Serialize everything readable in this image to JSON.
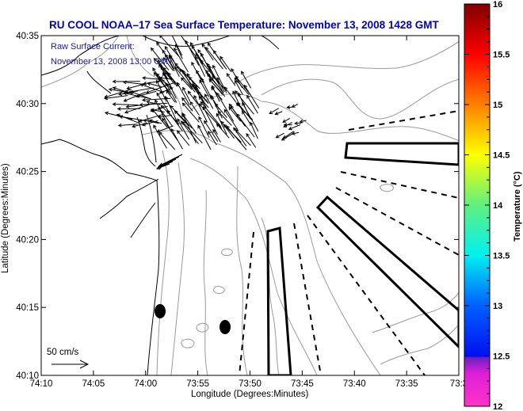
{
  "title": "RU COOL  NOAA–17  Sea Surface Temperature:  November 13, 2008 1428 GMT",
  "inset": {
    "line1": "Raw Surface Current:",
    "line2": "November 13, 2008 13:00 GMT"
  },
  "scale_label": "50 cm/s",
  "map": {
    "xlabel": "Longitude (Degrees:Minutes)",
    "ylabel": "Latitude (Degrees:Minutes)",
    "x_ticks": [
      "74:10",
      "74:05",
      "74:00",
      "73:55",
      "73:50",
      "73:45",
      "73:40",
      "73:35",
      "73:3"
    ],
    "y_ticks": [
      "40:35",
      "40:30",
      "40:25",
      "40:20",
      "40:15",
      "40:10"
    ],
    "sampling_sites": 2
  },
  "colorbar": {
    "label": "Temperature (°C)",
    "min": 12,
    "max": 16,
    "ticks": [
      "16",
      "15.5",
      "15",
      "14.5",
      "14",
      "13.5",
      "13",
      "12.5",
      "12"
    ],
    "colors": [
      "#ff33cc",
      "#0000ff",
      "#00ffff",
      "#66ff66",
      "#ffff00",
      "#ff8800",
      "#ff0000",
      "#800000"
    ]
  },
  "chart_data": {
    "type": "map",
    "title": "RU COOL  NOAA–17  Sea Surface Temperature:  November 13, 2008 1428 GMT",
    "xlabel": "Longitude (Degrees:Minutes)",
    "ylabel": "Latitude (Degrees:Minutes)",
    "xlim": [
      "74:10",
      "73:30"
    ],
    "ylim": [
      "40:10",
      "40:35"
    ],
    "colorbar_range": [
      12,
      16
    ],
    "colorbar_label": "Temperature (°C)",
    "vector_scale": "50 cm/s",
    "current_time": "November 13, 2008 13:00 GMT"
  }
}
